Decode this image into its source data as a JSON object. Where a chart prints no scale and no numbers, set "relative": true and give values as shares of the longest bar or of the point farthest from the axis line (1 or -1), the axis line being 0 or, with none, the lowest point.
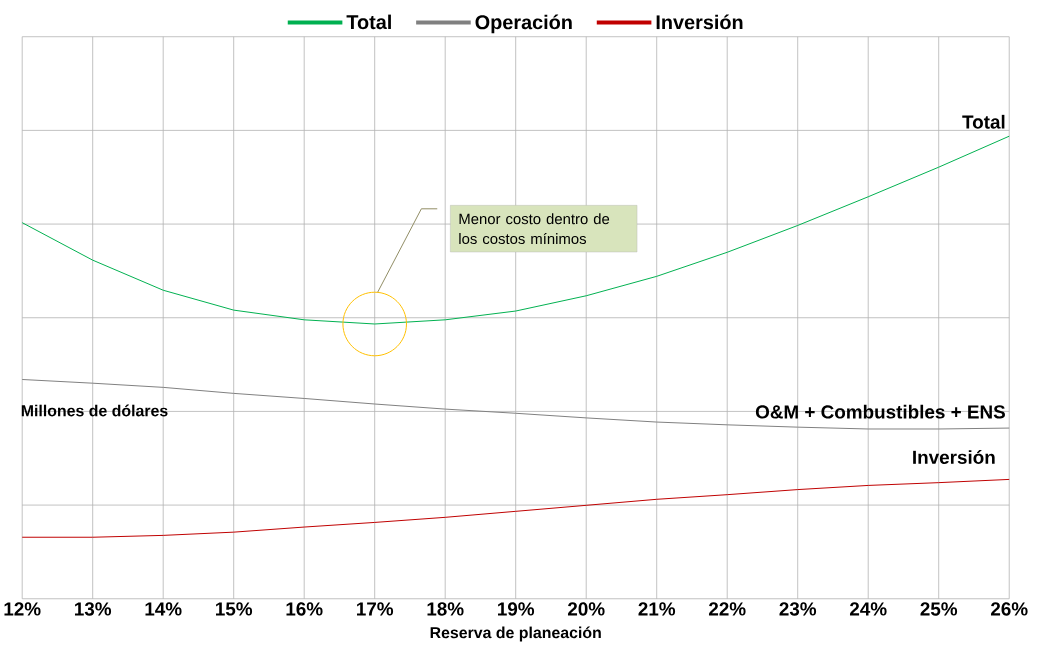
{
  "chart_data": {
    "type": "line",
    "relative": true,
    "xlabel": "Reserva de planeación",
    "ylabel": "Millones de dólares",
    "x": [
      12,
      13,
      14,
      15,
      16,
      17,
      18,
      19,
      20,
      21,
      22,
      23,
      24,
      25,
      26
    ],
    "xlim": [
      12,
      26
    ],
    "xticks": [
      {
        "value": 12,
        "label": "12%"
      },
      {
        "value": 13,
        "label": "13%"
      },
      {
        "value": 14,
        "label": "14%"
      },
      {
        "value": 15,
        "label": "15%"
      },
      {
        "value": 16,
        "label": "16%"
      },
      {
        "value": 17,
        "label": "17%"
      },
      {
        "value": 18,
        "label": "18%"
      },
      {
        "value": 19,
        "label": "19%"
      },
      {
        "value": 20,
        "label": "20%"
      },
      {
        "value": 21,
        "label": "21%"
      },
      {
        "value": 22,
        "label": "22%"
      },
      {
        "value": 23,
        "label": "23%"
      },
      {
        "value": 24,
        "label": "24%"
      },
      {
        "value": 25,
        "label": "25%"
      },
      {
        "value": 26,
        "label": "26%"
      }
    ],
    "series": [
      {
        "name": "Total",
        "color": "#00b050",
        "values": [
          0.813,
          0.732,
          0.667,
          0.624,
          0.603,
          0.594,
          0.603,
          0.622,
          0.655,
          0.697,
          0.749,
          0.807,
          0.869,
          0.933,
          1.0
        ]
      },
      {
        "name": "Operación",
        "color": "#808080",
        "values": [
          0.474,
          0.466,
          0.457,
          0.444,
          0.433,
          0.421,
          0.41,
          0.401,
          0.391,
          0.382,
          0.376,
          0.371,
          0.367,
          0.367,
          0.369
        ]
      },
      {
        "name": "Inversión",
        "color": "#c00000",
        "values": [
          0.133,
          0.133,
          0.137,
          0.144,
          0.155,
          0.165,
          0.176,
          0.189,
          0.202,
          0.215,
          0.225,
          0.236,
          0.245,
          0.251,
          0.258
        ]
      }
    ],
    "annotations": [
      "Total",
      "O&M + Combustibles + ENS",
      "Inversión",
      "Menor costo dentro de los costos mínimos"
    ],
    "grid": true,
    "legend": "top",
    "marker": "none",
    "line_style": "solid"
  }
}
